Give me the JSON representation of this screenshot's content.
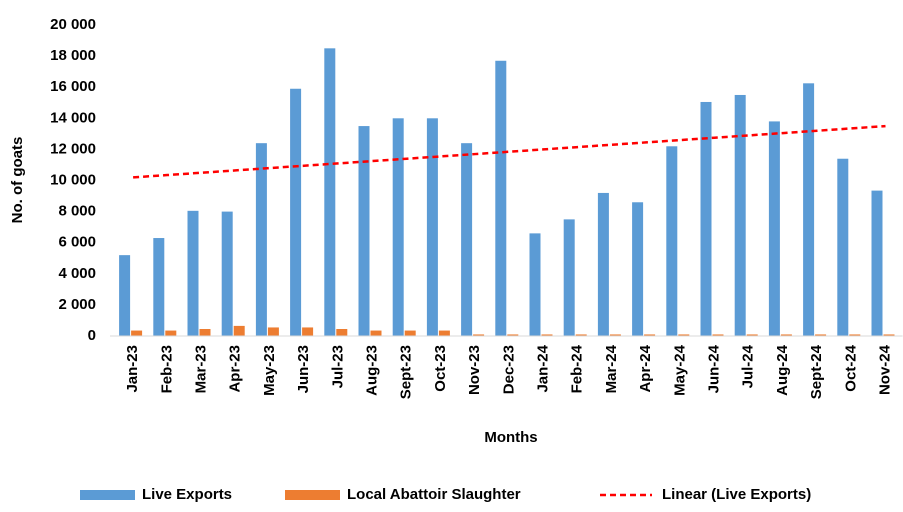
{
  "chart_data": {
    "type": "bar",
    "categories": [
      "Jan-23",
      "Feb-23",
      "Mar-23",
      "Apr-23",
      "May-23",
      "Jun-23",
      "Jul-23",
      "Aug-23",
      "Sept-23",
      "Oct-23",
      "Nov-23",
      "Dec-23",
      "Jan-24",
      "Feb-24",
      "Mar-24",
      "Apr-24",
      "May-24",
      "Jun-24",
      "Jul-24",
      "Aug-24",
      "Sept-24",
      "Oct-24",
      "Nov-24"
    ],
    "series": [
      {
        "name": "Live Exports",
        "color": "#5b9bd5",
        "values": [
          5200,
          6300,
          8050,
          8000,
          12400,
          15900,
          18500,
          13500,
          14000,
          14000,
          12400,
          17700,
          6600,
          7500,
          9200,
          8600,
          12200,
          15050,
          15500,
          13800,
          16250,
          11400,
          9350
        ]
      },
      {
        "name": "Local Abattoir Slaughter",
        "color": "#ed7d31",
        "values": [
          350,
          350,
          450,
          650,
          550,
          550,
          450,
          350,
          350,
          350,
          100,
          100,
          100,
          100,
          100,
          100,
          100,
          100,
          100,
          100,
          100,
          100,
          100
        ]
      },
      {
        "name": "Linear (Live Exports)",
        "color": "#ff0000",
        "type": "line",
        "values": [
          10200,
          10350,
          10500,
          10650,
          10800,
          10950,
          11100,
          11250,
          11400,
          11550,
          11700,
          11850,
          12000,
          12150,
          12300,
          12450,
          12600,
          12750,
          12900,
          13050,
          13200,
          13350,
          13500
        ]
      }
    ],
    "x_label": "Months",
    "y_label": "No. of goats",
    "ylim": [
      0,
      20000
    ],
    "yticks": [
      0,
      {
        "value": 2000,
        "label": "2 000"
      },
      {
        "value": 4000,
        "label": "4 000"
      },
      {
        "value": 6000,
        "label": "6 000"
      },
      {
        "value": 8000,
        "label": "8 000"
      },
      {
        "value": 10000,
        "label": "10 000"
      },
      {
        "value": 12000,
        "label": "12 000"
      },
      {
        "value": 14000,
        "label": "14 000"
      },
      {
        "value": 16000,
        "label": "16 000"
      },
      {
        "value": 18000,
        "label": "18 000"
      },
      {
        "value": 20000,
        "label": "20 000"
      }
    ],
    "grid": false,
    "legend": "bottom"
  }
}
